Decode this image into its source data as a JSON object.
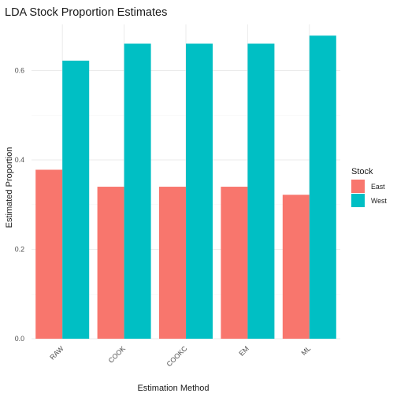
{
  "chart_data": {
    "type": "bar",
    "title": "LDA Stock Proportion Estimates",
    "xlabel": "Estimation Method",
    "ylabel": "Estimated Proportion",
    "categories": [
      "RAW",
      "COOK",
      "COOKC",
      "EM",
      "ML"
    ],
    "series": [
      {
        "name": "East",
        "color": "#F8766D",
        "values": [
          0.378,
          0.34,
          0.34,
          0.34,
          0.322
        ]
      },
      {
        "name": "West",
        "color": "#00BFC4",
        "values": [
          0.622,
          0.66,
          0.66,
          0.66,
          0.678
        ]
      }
    ],
    "yticks": [
      "0.0",
      "0.2",
      "0.4",
      "0.6"
    ],
    "ylim": [
      0,
      0.7
    ],
    "grid": true,
    "legend": {
      "title": "Stock",
      "position": "right"
    }
  }
}
